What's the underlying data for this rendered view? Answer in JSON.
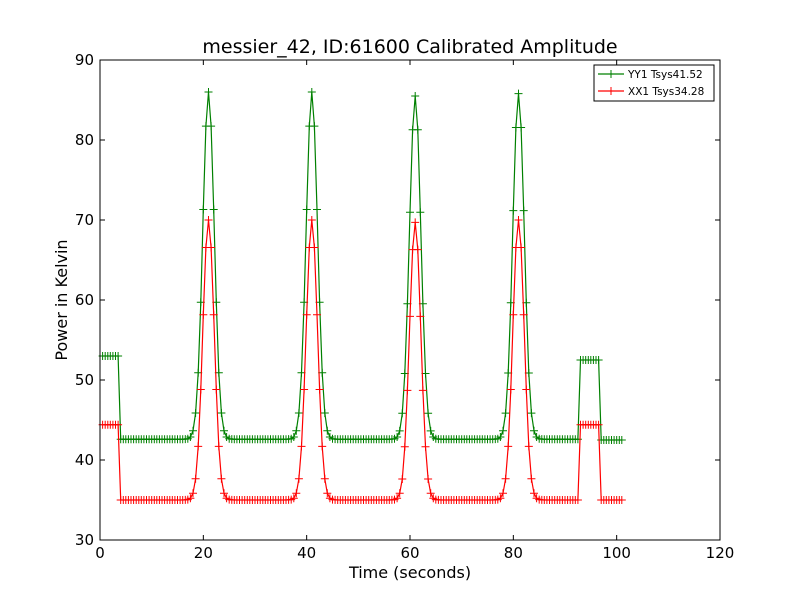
{
  "chart_data": {
    "type": "line",
    "title": "messier_42, ID:61600 Calibrated Amplitude",
    "xlabel": "Time (seconds)",
    "ylabel": "Power in Kelvin",
    "xlim": [
      0,
      120
    ],
    "ylim": [
      30,
      90
    ],
    "xticks": [
      0,
      20,
      40,
      60,
      80,
      100,
      120
    ],
    "yticks": [
      30,
      40,
      50,
      60,
      70,
      80,
      90
    ],
    "grid": false,
    "legend_position": "top-right",
    "sampling": {
      "start": 0.5,
      "end": 101,
      "step": 0.5
    },
    "series": [
      {
        "name": "YY1 Tsys41.52",
        "color": "#008000",
        "marker": "plus",
        "segments": [
          {
            "x0": 0.5,
            "x1": 4,
            "level": 53
          },
          {
            "x0": 4,
            "x1": 93,
            "level": 42.6
          },
          {
            "x0": 93,
            "x1": 97,
            "level": 52.5
          },
          {
            "x0": 97,
            "x1": 101,
            "level": 42.5
          }
        ],
        "peaks": [
          {
            "center": 21,
            "height": 86
          },
          {
            "center": 41,
            "height": 86
          },
          {
            "center": 61,
            "height": 85.5
          },
          {
            "center": 81,
            "height": 85.8
          }
        ],
        "peak_width": 1.1
      },
      {
        "name": "XX1 Tsys34.28",
        "color": "#ff0000",
        "marker": "plus",
        "segments": [
          {
            "x0": 0.5,
            "x1": 4,
            "level": 44.4
          },
          {
            "x0": 4,
            "x1": 93,
            "level": 35
          },
          {
            "x0": 93,
            "x1": 97,
            "level": 44.4
          },
          {
            "x0": 97,
            "x1": 101,
            "level": 35
          }
        ],
        "peaks": [
          {
            "center": 21,
            "height": 70
          },
          {
            "center": 41,
            "height": 70
          },
          {
            "center": 61,
            "height": 69.7
          },
          {
            "center": 81,
            "height": 70
          }
        ],
        "peak_width": 1.1
      }
    ]
  }
}
